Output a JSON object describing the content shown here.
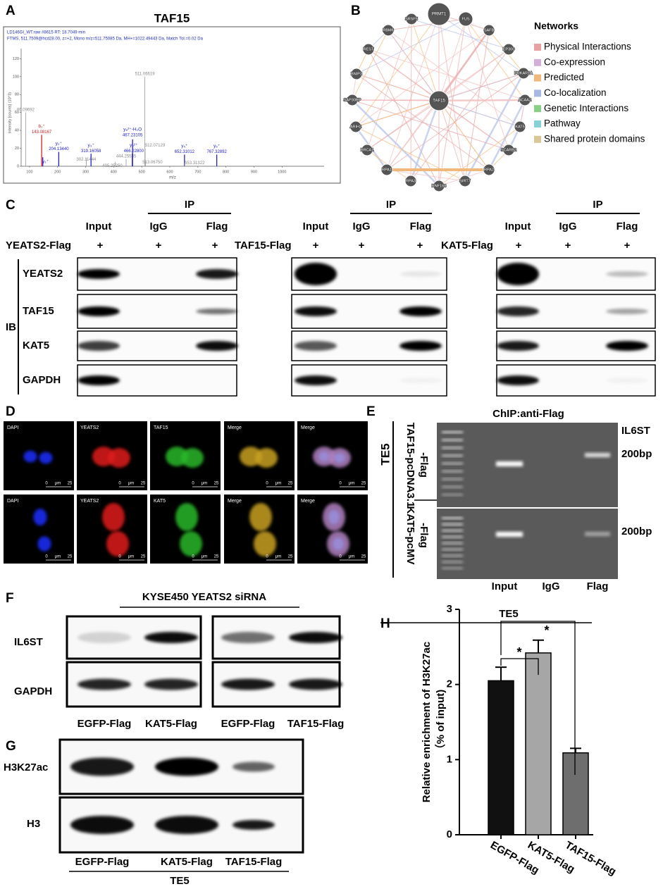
{
  "panel_labels": [
    "A",
    "B",
    "C",
    "D",
    "E",
    "F",
    "G",
    "H"
  ],
  "chart_data": [
    {
      "type": "stem",
      "title": "TAF15",
      "header": [
        "LD146GI_WT.raw #8615  RT: 18.7049 min",
        "FTMS, 511.7509@hcd28.00, z=+2, Mono m/z=511.75085 Da, MH+=1022.49443 Da, Match Tol.=0.02 Da"
      ],
      "xlabel": "m/z",
      "ylabel": "Intensity [counts] (10^3)",
      "x": [
        86.09692,
        143.08167,
        147.11,
        204.1344,
        302.11444,
        319.16058,
        405.2525,
        444.25535,
        466.228,
        467.23105,
        511.06619,
        512.07129,
        513.0675,
        652.31012,
        653.31322,
        767.32892
      ],
      "values": [
        60,
        35,
        10,
        16,
        9,
        14,
        5,
        8,
        14,
        30,
        100,
        20,
        6,
        13,
        5,
        13
      ],
      "x_labels": [
        "86.09692",
        "143.08167",
        null,
        "204.13440",
        "302.11444",
        "319.16058",
        "405.25250",
        "444.25535",
        "466.22800",
        "467.23105",
        "511.06619",
        "512.07129",
        "513.06750",
        "652.31012",
        "653.31322",
        "767.32892"
      ],
      "ion_labels": [
        null,
        "b₁⁺",
        "y₁⁺",
        "y₂⁺",
        null,
        "y₃⁺",
        null,
        null,
        "y₈²⁺",
        "y₈²⁺-H₂O",
        null,
        null,
        null,
        "y₅⁺",
        null,
        "y₆⁺"
      ],
      "colors": [
        "#999999",
        "#e02020",
        "#2020d0",
        "#2020d0",
        "#999999",
        "#2020d0",
        "#999999",
        "#999999",
        "#2020d0",
        "#2020d0",
        "#999999",
        "#999999",
        "#999999",
        "#2020d0",
        "#999999",
        "#2020d0"
      ],
      "xlim": [
        70,
        1150
      ],
      "xticks": [
        100,
        200,
        300,
        400,
        500,
        600,
        700,
        800,
        900,
        1000
      ],
      "ylim": [
        0,
        125
      ],
      "yticks": [
        0,
        20,
        40,
        60,
        80,
        100,
        120
      ]
    },
    {
      "type": "bar",
      "title": "TE5",
      "ylabel": [
        "Relative enrichment of H3K27ac",
        "（% of input)"
      ],
      "categories": [
        "EGFP-Flag",
        "KAT5-Flag",
        "TAF15-Flag"
      ],
      "values": [
        2.05,
        2.42,
        1.09
      ],
      "errors": [
        0.18,
        0.17,
        0.06
      ],
      "colors": [
        "#111111",
        "#a6a6a6",
        "#6e6e6e"
      ],
      "ylim": [
        0,
        3
      ],
      "yticks": [
        0,
        1,
        2,
        3
      ],
      "annotations": [
        "*",
        "*"
      ]
    }
  ],
  "network": {
    "nodes": [
      "PRMT1",
      "FUS",
      "SRSF5",
      "RBM6",
      "SAFB",
      "REST",
      "EP300",
      "BNIP3",
      "PRKAR1A",
      "SAP30BP",
      "TAF15",
      "ACAA2",
      "ARIH2",
      "KAT5",
      "BRCA1",
      "SCARB2",
      "RPA1",
      "RPA2",
      "RPA3",
      "RNF168",
      "SIRT7"
    ],
    "legend_title": "Networks",
    "legend": [
      {
        "name": "Physical Interactions",
        "color": "#e8a0a0"
      },
      {
        "name": "Co-expression",
        "color": "#d4b0d8"
      },
      {
        "name": "Predicted",
        "color": "#f0b87a"
      },
      {
        "name": "Co-localization",
        "color": "#a8b8e0"
      },
      {
        "name": "Genetic Interactions",
        "color": "#88d088"
      },
      {
        "name": "Pathway",
        "color": "#88d0d8"
      },
      {
        "name": "Shared protein domains",
        "color": "#d8c898"
      }
    ]
  },
  "coip": {
    "ip": "IP",
    "columns": [
      "Input",
      "IgG",
      "Flag"
    ],
    "plus": "+",
    "ib": "IB",
    "proteins": [
      "YEATS2",
      "TAF15",
      "KAT5",
      "GAPDH"
    ],
    "baits": [
      "YEATS2-Flag",
      "TAF15-Flag",
      "KAT5-Flag"
    ]
  },
  "immunofluorescence": {
    "rows": [
      [
        "DAPI",
        "YEATS2",
        "TAF15",
        "Merge",
        "Merge"
      ],
      [
        "DAPI",
        "YEATS2",
        "KAT5",
        "Merge",
        "Merge"
      ]
    ],
    "scale": [
      "0",
      "μm",
      "25"
    ]
  },
  "chip": {
    "title": "ChIP:anti-Flag",
    "cell_line": "TE5",
    "constructs": [
      [
        "TAF15-pcDNA3.1",
        "-Flag"
      ],
      [
        "KAT5-pcMV",
        "-Flag"
      ]
    ],
    "gene": "IL6ST",
    "size_labels": [
      "200bp",
      "200bp"
    ],
    "lanes": [
      "Input",
      "IgG",
      "Flag"
    ]
  },
  "panel_f": {
    "title": "KYSE450 YEATS2 siRNA",
    "proteins": [
      "IL6ST",
      "GAPDH"
    ],
    "lanes": [
      "EGFP-Flag",
      "KAT5-Flag",
      "EGFP-Flag",
      "TAF15-Flag"
    ]
  },
  "panel_g": {
    "proteins": [
      "H3K27ac",
      "H3"
    ],
    "lanes": [
      "EGFP-Flag",
      "KAT5-Flag",
      "TAF15-Flag"
    ],
    "cell_line": "TE5"
  }
}
